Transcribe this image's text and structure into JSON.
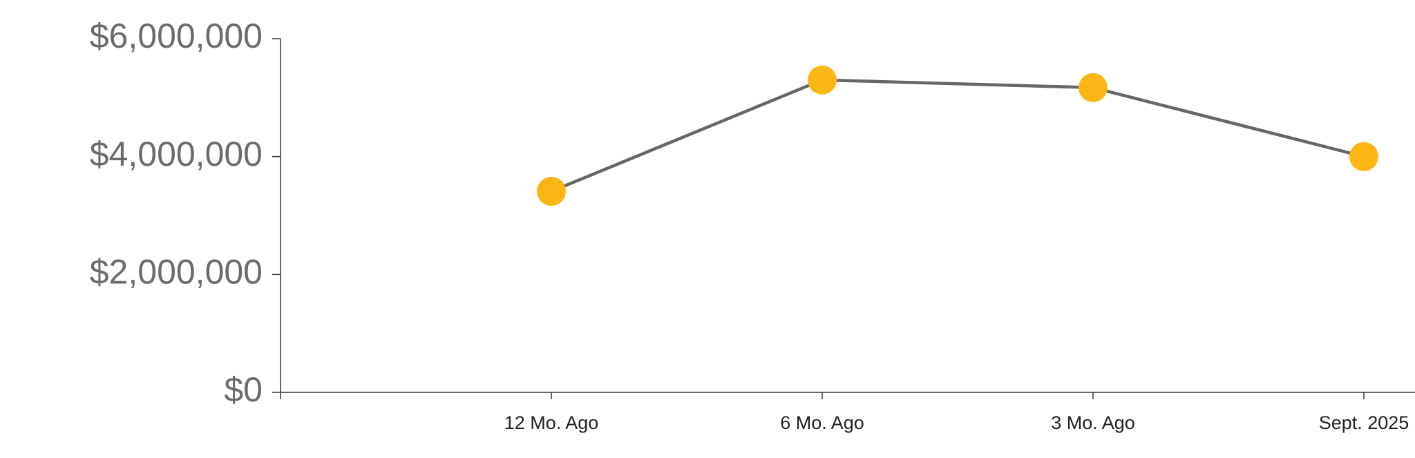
{
  "chart_data": {
    "type": "line",
    "categories": [
      null,
      "12 Mo. Ago",
      "6 Mo. Ago",
      "3 Mo. Ago",
      "Sept. 2025"
    ],
    "series": [
      {
        "color": "#fbb614",
        "line_color": "#666666",
        "values": [
          null,
          3410000,
          5300000,
          5170000,
          4000000
        ]
      }
    ],
    "ylim": [
      0,
      6000000
    ],
    "yticks": [
      {
        "value": 0,
        "label": "$0"
      },
      {
        "value": 2000000,
        "label": "$2,000,000"
      },
      {
        "value": 4000000,
        "label": "$4,000,000"
      },
      {
        "value": 6000000,
        "label": "$6,000,000"
      }
    ]
  }
}
